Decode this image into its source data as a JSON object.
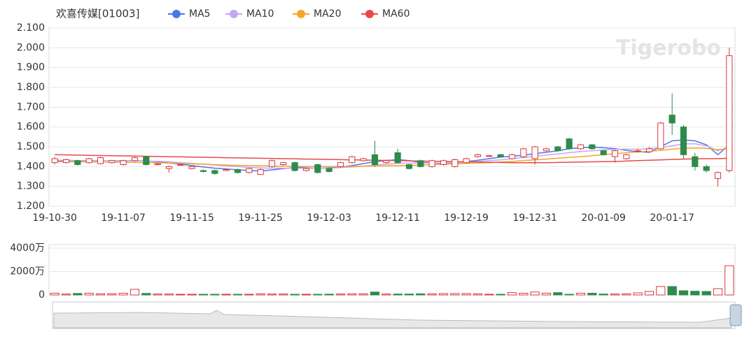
{
  "chart_data": [
    {
      "type": "candlestick",
      "title": "欢喜传媒[01003]",
      "watermark": "Tigerobo",
      "categories": [
        "19-10-30",
        null,
        null,
        null,
        null,
        null,
        "19-11-07",
        null,
        null,
        null,
        null,
        null,
        "19-11-15",
        null,
        null,
        null,
        null,
        null,
        "19-11-25",
        null,
        null,
        null,
        null,
        null,
        "19-12-03",
        null,
        null,
        null,
        null,
        null,
        "19-12-11",
        null,
        null,
        null,
        null,
        null,
        "19-12-19",
        null,
        null,
        null,
        null,
        null,
        "19-12-31",
        null,
        null,
        null,
        null,
        null,
        "20-01-09",
        null,
        null,
        null,
        null,
        null,
        "20-01-17",
        null,
        null,
        null,
        null,
        null
      ],
      "open": [
        1.42,
        1.42,
        1.43,
        1.42,
        1.415,
        1.42,
        1.41,
        1.43,
        1.45,
        1.41,
        1.39,
        1.41,
        1.39,
        1.38,
        1.38,
        1.38,
        1.385,
        1.37,
        1.36,
        1.4,
        1.41,
        1.42,
        1.38,
        1.41,
        1.39,
        1.4,
        1.42,
        1.43,
        1.46,
        1.42,
        1.47,
        1.41,
        1.43,
        1.4,
        1.41,
        1.4,
        1.42,
        1.45,
        1.455,
        1.46,
        1.44,
        1.45,
        1.44,
        1.48,
        1.5,
        1.54,
        1.49,
        1.51,
        1.48,
        1.45,
        1.44,
        1.48,
        1.475,
        1.49,
        1.66,
        1.6,
        1.45,
        1.4,
        1.34,
        1.38
      ],
      "high": [
        1.45,
        1.44,
        1.435,
        1.445,
        1.45,
        1.435,
        1.435,
        1.45,
        1.455,
        1.42,
        1.405,
        1.415,
        1.405,
        1.385,
        1.385,
        1.39,
        1.39,
        1.395,
        1.39,
        1.435,
        1.425,
        1.425,
        1.395,
        1.415,
        1.395,
        1.425,
        1.455,
        1.445,
        1.53,
        1.435,
        1.49,
        1.415,
        1.435,
        1.435,
        1.435,
        1.44,
        1.445,
        1.465,
        1.46,
        1.465,
        1.465,
        1.495,
        1.505,
        1.495,
        1.505,
        1.545,
        1.515,
        1.515,
        1.485,
        1.485,
        1.465,
        1.49,
        1.5,
        1.625,
        1.77,
        1.61,
        1.47,
        1.41,
        1.375,
        2.0
      ],
      "low": [
        1.41,
        1.415,
        1.405,
        1.415,
        1.41,
        1.415,
        1.405,
        1.425,
        1.405,
        1.405,
        1.37,
        1.405,
        1.385,
        1.37,
        1.36,
        1.38,
        1.365,
        1.365,
        1.36,
        1.395,
        1.405,
        1.375,
        1.375,
        1.365,
        1.37,
        1.395,
        1.415,
        1.425,
        1.4,
        1.415,
        1.415,
        1.385,
        1.395,
        1.395,
        1.405,
        1.395,
        1.415,
        1.445,
        1.45,
        1.445,
        1.435,
        1.445,
        1.41,
        1.475,
        1.475,
        1.485,
        1.485,
        1.485,
        1.455,
        1.42,
        1.435,
        1.47,
        1.47,
        1.485,
        1.56,
        1.44,
        1.38,
        1.37,
        1.3,
        1.37
      ],
      "close": [
        1.44,
        1.435,
        1.41,
        1.44,
        1.445,
        1.43,
        1.43,
        1.445,
        1.41,
        1.415,
        1.4,
        1.41,
        1.4,
        1.375,
        1.365,
        1.385,
        1.37,
        1.39,
        1.385,
        1.43,
        1.42,
        1.38,
        1.39,
        1.37,
        1.375,
        1.42,
        1.45,
        1.44,
        1.41,
        1.43,
        1.42,
        1.39,
        1.4,
        1.43,
        1.43,
        1.435,
        1.44,
        1.46,
        1.455,
        1.45,
        1.46,
        1.49,
        1.5,
        1.49,
        1.48,
        1.49,
        1.51,
        1.49,
        1.46,
        1.48,
        1.46,
        1.48,
        1.49,
        1.62,
        1.62,
        1.46,
        1.4,
        1.38,
        1.37,
        1.96
      ],
      "up_color": "#d9363e",
      "down_color": "#2e8b4b",
      "series": [
        {
          "name": "MA5",
          "color": "#4a78e8",
          "values": [
            1.43,
            1.43,
            1.428,
            1.428,
            1.43,
            1.43,
            1.428,
            1.43,
            1.428,
            1.425,
            1.418,
            1.412,
            1.405,
            1.398,
            1.392,
            1.388,
            1.384,
            1.38,
            1.378,
            1.383,
            1.39,
            1.395,
            1.398,
            1.4,
            1.398,
            1.398,
            1.405,
            1.415,
            1.425,
            1.43,
            1.435,
            1.43,
            1.422,
            1.418,
            1.415,
            1.418,
            1.425,
            1.432,
            1.44,
            1.448,
            1.452,
            1.458,
            1.465,
            1.472,
            1.48,
            1.49,
            1.495,
            1.498,
            1.495,
            1.49,
            1.482,
            1.475,
            1.472,
            1.5,
            1.53,
            1.535,
            1.53,
            1.51,
            1.46,
            1.51
          ]
        },
        {
          "name": "MA10",
          "color": "#c6a6f2",
          "values": [
            1.432,
            1.432,
            1.43,
            1.43,
            1.43,
            1.43,
            1.43,
            1.429,
            1.428,
            1.427,
            1.424,
            1.42,
            1.416,
            1.412,
            1.408,
            1.404,
            1.4,
            1.396,
            1.393,
            1.392,
            1.392,
            1.392,
            1.391,
            1.391,
            1.392,
            1.395,
            1.398,
            1.402,
            1.408,
            1.412,
            1.416,
            1.418,
            1.418,
            1.418,
            1.418,
            1.42,
            1.422,
            1.426,
            1.43,
            1.434,
            1.44,
            1.446,
            1.452,
            1.458,
            1.464,
            1.47,
            1.476,
            1.48,
            1.484,
            1.487,
            1.488,
            1.488,
            1.49,
            1.495,
            1.505,
            1.515,
            1.515,
            1.505,
            1.48,
            1.5
          ]
        },
        {
          "name": "MA20",
          "color": "#f5a52a",
          "values": [
            1.425,
            1.425,
            1.424,
            1.424,
            1.423,
            1.423,
            1.422,
            1.421,
            1.42,
            1.419,
            1.418,
            1.416,
            1.414,
            1.412,
            1.41,
            1.408,
            1.406,
            1.405,
            1.404,
            1.403,
            1.402,
            1.401,
            1.4,
            1.4,
            1.4,
            1.4,
            1.401,
            1.402,
            1.403,
            1.404,
            1.405,
            1.406,
            1.408,
            1.41,
            1.412,
            1.414,
            1.416,
            1.418,
            1.42,
            1.423,
            1.426,
            1.43,
            1.434,
            1.438,
            1.442,
            1.446,
            1.45,
            1.455,
            1.46,
            1.465,
            1.47,
            1.474,
            1.478,
            1.482,
            1.488,
            1.492,
            1.494,
            1.492,
            1.485,
            1.49
          ]
        },
        {
          "name": "MA60",
          "color": "#ee4747",
          "values": [
            1.46,
            1.459,
            1.458,
            1.457,
            1.456,
            1.455,
            1.454,
            1.453,
            1.452,
            1.451,
            1.45,
            1.449,
            1.448,
            1.447,
            1.446,
            1.445,
            1.444,
            1.443,
            1.442,
            1.441,
            1.44,
            1.439,
            1.438,
            1.437,
            1.436,
            1.435,
            1.434,
            1.433,
            1.432,
            1.431,
            1.43,
            1.429,
            1.428,
            1.427,
            1.426,
            1.425,
            1.424,
            1.423,
            1.422,
            1.421,
            1.42,
            1.42,
            1.42,
            1.42,
            1.421,
            1.422,
            1.423,
            1.424,
            1.425,
            1.426,
            1.428,
            1.43,
            1.432,
            1.434,
            1.436,
            1.438,
            1.439,
            1.44,
            1.44,
            1.442
          ]
        }
      ],
      "ylim": [
        1.2,
        2.1
      ],
      "yticks": [
        {
          "value": 1.2,
          "label": "1.200"
        },
        {
          "value": 1.3,
          "label": "1.300"
        },
        {
          "value": 1.4,
          "label": "1.400"
        },
        {
          "value": 1.5,
          "label": "1.500"
        },
        {
          "value": 1.6,
          "label": "1.600"
        },
        {
          "value": 1.7,
          "label": "1.700"
        },
        {
          "value": 1.8,
          "label": "1.800"
        },
        {
          "value": 1.9,
          "label": "1.900"
        },
        {
          "value": 2.0,
          "label": "2.000"
        },
        {
          "value": 2.1,
          "label": "2.100"
        }
      ],
      "grid": true
    },
    {
      "type": "bar",
      "values": [
        150,
        80,
        130,
        150,
        100,
        110,
        150,
        480,
        130,
        80,
        80,
        60,
        60,
        60,
        60,
        60,
        60,
        60,
        100,
        80,
        80,
        60,
        60,
        60,
        70,
        80,
        100,
        100,
        250,
        80,
        80,
        80,
        100,
        100,
        120,
        120,
        120,
        100,
        60,
        60,
        200,
        150,
        250,
        150,
        200,
        60,
        150,
        150,
        80,
        80,
        100,
        180,
        300,
        720,
        720,
        360,
        320,
        300,
        540,
        2500
      ],
      "ylim": [
        0,
        4000
      ],
      "yticks": [
        0,
        {
          "value": 2000,
          "label": "2000万"
        },
        {
          "value": 4000,
          "label": "4000万"
        }
      ],
      "grid": true
    }
  ]
}
